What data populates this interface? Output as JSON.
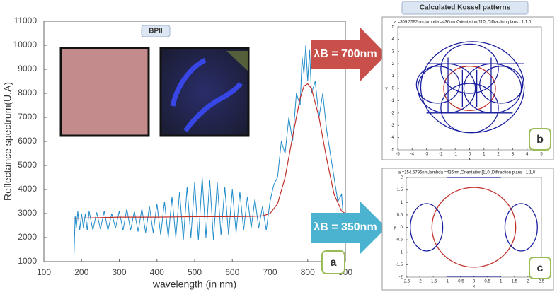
{
  "chart_data": [
    {
      "type": "line",
      "xlabel": "wavelength (in nm)",
      "ylabel": "Reflectance spectrum(U.A)",
      "xlim": [
        100,
        900
      ],
      "ylim": [
        1000,
        11000
      ],
      "xticks": [
        100,
        200,
        300,
        400,
        500,
        600,
        700,
        800,
        900
      ],
      "yticks": [
        1000,
        2000,
        3000,
        4000,
        5000,
        6000,
        7000,
        8000,
        9000,
        10000,
        11000
      ],
      "series": [
        {
          "color": "#1f8bc9",
          "x": [
            180,
            183,
            186,
            190,
            195,
            200,
            205,
            210,
            215,
            220,
            230,
            240,
            250,
            260,
            270,
            280,
            290,
            300,
            310,
            320,
            330,
            340,
            350,
            360,
            370,
            380,
            390,
            400,
            410,
            420,
            430,
            440,
            450,
            460,
            470,
            480,
            490,
            500,
            510,
            520,
            530,
            540,
            550,
            560,
            570,
            580,
            590,
            600,
            610,
            620,
            630,
            640,
            650,
            660,
            670,
            680,
            690,
            700,
            710,
            720,
            730,
            740,
            750,
            760,
            770,
            780,
            785,
            790,
            795,
            800,
            805,
            810,
            820,
            830,
            840,
            850,
            860,
            870,
            880,
            890,
            895
          ],
          "values": [
            1300,
            2900,
            2400,
            3100,
            2300,
            3000,
            2400,
            3000,
            2300,
            3100,
            2300,
            3050,
            2350,
            3100,
            2300,
            3000,
            2400,
            3100,
            2300,
            3200,
            2300,
            3100,
            2250,
            3200,
            2200,
            3300,
            2200,
            3400,
            2100,
            3500,
            2000,
            3700,
            2000,
            3900,
            1900,
            4100,
            2000,
            4300,
            1900,
            4500,
            2000,
            4400,
            1900,
            4300,
            2100,
            4100,
            2100,
            4000,
            2200,
            3900,
            2300,
            3700,
            2400,
            3600,
            2400,
            3300,
            2300,
            3500,
            4200,
            4500,
            6000,
            5500,
            7000,
            6000,
            8000,
            7500,
            9500,
            8800,
            10000,
            8500,
            9800,
            8000,
            8500,
            7000,
            8000,
            6500,
            5500,
            4500,
            3500,
            3800,
            2700
          ]
        },
        {
          "color": "#c0302a",
          "x": [
            180,
            300,
            400,
            500,
            600,
            650,
            680,
            700,
            720,
            740,
            760,
            780,
            790,
            800,
            810,
            830,
            850,
            870,
            890,
            900
          ],
          "values": [
            2800,
            2850,
            2850,
            2870,
            2870,
            2880,
            2900,
            3000,
            3400,
            4500,
            6200,
            7800,
            8300,
            8400,
            8200,
            7000,
            5300,
            3800,
            3100,
            3000
          ]
        }
      ]
    },
    {
      "type": "pattern",
      "title": "a =309.3592nm,lambda =436nm,Orientation[110],Diffraction plans : 1,1,0",
      "xlabel": "x",
      "ylabel": "y",
      "xlim": [
        -5,
        5
      ],
      "ylim": [
        -5,
        5
      ],
      "xticks": [
        -5,
        -4,
        -3,
        -2,
        -1,
        0,
        1,
        2,
        3,
        4,
        5
      ],
      "yticks": [
        -5,
        -4,
        -3,
        -2,
        -1,
        0,
        1,
        2,
        3,
        4,
        5
      ]
    },
    {
      "type": "pattern",
      "title": "a =154.6796nm,lambda =436nm,Orientation[110],Diffraction plans : 1,1,0",
      "xlabel": "x",
      "ylabel": "y",
      "xlim": [
        -2.5,
        2.5
      ],
      "ylim": [
        -2,
        2
      ],
      "xticks": [
        -2.5,
        -2,
        -1.5,
        -1,
        -0.5,
        0,
        0.5,
        1,
        1.5,
        2,
        2.5
      ],
      "yticks": [
        -2,
        -1.5,
        -1,
        -0.5,
        0,
        0.5,
        1,
        1.5,
        2
      ]
    }
  ],
  "inset_label": "BPII",
  "panel_header": "Calculated Kossel patterns",
  "arrows": [
    {
      "text": "λB = 700nm",
      "color": "#c9504a"
    },
    {
      "text": "λB = 350nm",
      "color": "#4bb3d0"
    }
  ],
  "tags": [
    "a",
    "b",
    "c"
  ]
}
